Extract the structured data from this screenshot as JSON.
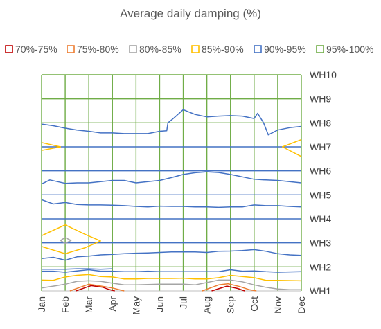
{
  "chart_data": {
    "type": "line",
    "title": "Average daily damping (%)",
    "xlabel": "",
    "ylabel": "",
    "x_labels": [
      "Jan",
      "Feb",
      "Mar",
      "Apr",
      "May",
      "Jun",
      "Jul",
      "Aug",
      "Sep",
      "Oct",
      "Nov",
      "Dec"
    ],
    "y_labels": [
      "WH1",
      "WH2",
      "WH3",
      "WH4",
      "WH5",
      "WH6",
      "WH7",
      "WH8",
      "WH9",
      "WH10"
    ],
    "xlim": [
      1,
      12
    ],
    "ylim": [
      1,
      10
    ],
    "grid": true,
    "legend_position": "top",
    "series": [
      {
        "name": "70%-75%",
        "color": "#c00000",
        "lines": [
          [
            [
              2.45,
              1
            ],
            [
              3.1,
              1.22
            ],
            [
              3.6,
              1.15
            ],
            [
              3.85,
              1.06
            ],
            [
              4.1,
              1
            ]
          ],
          [
            [
              8.2,
              1
            ],
            [
              8.85,
              1.2
            ],
            [
              9.3,
              1.1
            ],
            [
              9.6,
              1
            ]
          ]
        ]
      },
      {
        "name": "75%-80%",
        "color": "#ed7d31",
        "lines": [
          [
            [
              2.2,
              1
            ],
            [
              3,
              1.28
            ],
            [
              3.4,
              1.22
            ],
            [
              4,
              1.12
            ],
            [
              4.5,
              1
            ]
          ],
          [
            [
              7.8,
              1
            ],
            [
              8.5,
              1.25
            ],
            [
              8.9,
              1.3
            ],
            [
              9.4,
              1.18
            ],
            [
              9.8,
              1.05
            ],
            [
              10.1,
              1
            ]
          ]
        ]
      },
      {
        "name": "80%-85%",
        "color": "#a5a5a5",
        "lines": [
          [
            [
              1,
              1.12
            ],
            [
              1.5,
              1.2
            ],
            [
              2,
              1.28
            ],
            [
              2.5,
              1.4
            ],
            [
              3,
              1.42
            ],
            [
              3.5,
              1.4
            ],
            [
              4,
              1.32
            ],
            [
              4.5,
              1.25
            ],
            [
              5,
              1.25
            ],
            [
              6,
              1.28
            ],
            [
              7,
              1.28
            ],
            [
              7.5,
              1.25
            ],
            [
              8,
              1.35
            ],
            [
              8.5,
              1.45
            ],
            [
              9,
              1.45
            ],
            [
              9.5,
              1.38
            ],
            [
              10,
              1.25
            ],
            [
              10.5,
              1.15
            ],
            [
              11,
              1.08
            ],
            [
              11.5,
              1.05
            ],
            [
              12,
              1.05
            ]
          ],
          [
            [
              1.8,
              3.1
            ],
            [
              2,
              3.22
            ],
            [
              2.25,
              3.1
            ],
            [
              2,
              2.98
            ],
            [
              1.8,
              3.1
            ]
          ]
        ]
      },
      {
        "name": "85%-90%",
        "color": "#ffc000",
        "lines": [
          [
            [
              1,
              1.45
            ],
            [
              1.5,
              1.44
            ],
            [
              2,
              1.58
            ],
            [
              2.5,
              1.65
            ],
            [
              3,
              1.68
            ],
            [
              3.5,
              1.6
            ],
            [
              4,
              1.58
            ],
            [
              4.5,
              1.5
            ],
            [
              5,
              1.5
            ],
            [
              5.5,
              1.52
            ],
            [
              6,
              1.52
            ],
            [
              6.5,
              1.52
            ],
            [
              7,
              1.53
            ],
            [
              7.5,
              1.5
            ],
            [
              8,
              1.5
            ],
            [
              8.5,
              1.55
            ],
            [
              9,
              1.65
            ],
            [
              9.5,
              1.6
            ],
            [
              10,
              1.55
            ],
            [
              10.5,
              1.44
            ],
            [
              11,
              1.44
            ],
            [
              12,
              1.42
            ]
          ],
          [
            [
              1,
              3.3
            ],
            [
              2,
              3.75
            ],
            [
              2.85,
              3.35
            ],
            [
              3.5,
              3.08
            ],
            [
              2.85,
              2.8
            ],
            [
              2,
              2.55
            ],
            [
              1,
              2.85
            ]
          ],
          [
            [
              1,
              7.18
            ],
            [
              1.8,
              7.0
            ],
            [
              1,
              6.85
            ]
          ],
          [
            [
              12,
              7.3
            ],
            [
              11.2,
              7.0
            ],
            [
              12,
              6.6
            ]
          ]
        ]
      },
      {
        "name": "90%-95%",
        "color": "#4472c4",
        "lines": [
          [
            [
              1,
              1.82
            ],
            [
              1.5,
              1.82
            ],
            [
              2,
              1.78
            ],
            [
              2.5,
              1.83
            ],
            [
              3,
              1.88
            ],
            [
              3.5,
              1.82
            ],
            [
              4,
              1.82
            ],
            [
              4.5,
              1.8
            ],
            [
              5,
              1.8
            ],
            [
              5.5,
              1.82
            ],
            [
              6,
              1.8
            ],
            [
              6.5,
              1.8
            ],
            [
              7,
              1.8
            ],
            [
              7.5,
              1.8
            ],
            [
              8,
              1.8
            ],
            [
              8.5,
              1.8
            ],
            [
              9,
              1.88
            ],
            [
              9.5,
              1.82
            ],
            [
              10,
              1.83
            ],
            [
              10.5,
              1.8
            ],
            [
              11,
              1.78
            ],
            [
              12,
              1.8
            ]
          ],
          [
            [
              1,
              1.9
            ],
            [
              2,
              1.9
            ],
            [
              2.5,
              1.92
            ],
            [
              3,
              1.92
            ],
            [
              3.5,
              1.9
            ],
            [
              4,
              1.92
            ]
          ],
          [
            [
              1,
              2.35
            ],
            [
              1.5,
              2.4
            ],
            [
              2,
              2.28
            ],
            [
              2.5,
              2.42
            ],
            [
              3,
              2.45
            ],
            [
              3.5,
              2.5
            ],
            [
              4,
              2.52
            ],
            [
              4.5,
              2.55
            ],
            [
              5,
              2.57
            ],
            [
              5.5,
              2.58
            ],
            [
              6,
              2.6
            ],
            [
              6.5,
              2.62
            ],
            [
              7,
              2.62
            ],
            [
              7.5,
              2.62
            ],
            [
              8,
              2.6
            ],
            [
              8.5,
              2.65
            ],
            [
              9,
              2.66
            ],
            [
              9.5,
              2.68
            ],
            [
              10,
              2.72
            ],
            [
              10.5,
              2.65
            ],
            [
              11,
              2.55
            ],
            [
              11.5,
              2.5
            ],
            [
              12,
              2.48
            ]
          ],
          [
            [
              1,
              4.8
            ],
            [
              1.5,
              4.62
            ],
            [
              2,
              4.68
            ],
            [
              2.5,
              4.6
            ],
            [
              3,
              4.58
            ],
            [
              3.5,
              4.58
            ],
            [
              4,
              4.57
            ],
            [
              4.5,
              4.55
            ],
            [
              5,
              4.52
            ],
            [
              5.5,
              4.5
            ],
            [
              6,
              4.53
            ],
            [
              6.5,
              4.52
            ],
            [
              7,
              4.52
            ],
            [
              7.5,
              4.5
            ],
            [
              8,
              4.5
            ],
            [
              8.5,
              4.48
            ],
            [
              9,
              4.5
            ],
            [
              9.5,
              4.5
            ],
            [
              10,
              4.58
            ],
            [
              10.5,
              4.55
            ],
            [
              11,
              4.55
            ],
            [
              11.5,
              4.52
            ],
            [
              12,
              4.5
            ]
          ],
          [
            [
              1,
              5.45
            ],
            [
              1.35,
              5.62
            ],
            [
              2,
              5.48
            ],
            [
              2.5,
              5.5
            ],
            [
              3,
              5.5
            ],
            [
              3.5,
              5.55
            ],
            [
              4,
              5.6
            ],
            [
              4.5,
              5.6
            ],
            [
              5,
              5.5
            ],
            [
              5.5,
              5.55
            ],
            [
              6,
              5.6
            ],
            [
              6.5,
              5.72
            ],
            [
              7,
              5.85
            ],
            [
              7.5,
              5.92
            ],
            [
              8,
              5.96
            ],
            [
              8.5,
              5.93
            ],
            [
              9,
              5.85
            ],
            [
              9.5,
              5.75
            ],
            [
              10,
              5.65
            ],
            [
              10.5,
              5.62
            ],
            [
              11,
              5.6
            ],
            [
              11.5,
              5.55
            ],
            [
              12,
              5.5
            ]
          ],
          [
            [
              1,
              7.95
            ],
            [
              1.5,
              7.88
            ],
            [
              2,
              7.78
            ],
            [
              2.5,
              7.7
            ],
            [
              3,
              7.65
            ],
            [
              3.5,
              7.58
            ],
            [
              4,
              7.58
            ],
            [
              4.5,
              7.55
            ],
            [
              5,
              7.55
            ],
            [
              5.5,
              7.55
            ],
            [
              6,
              7.65
            ],
            [
              6.3,
              7.67
            ],
            [
              6.35,
              8.0
            ],
            [
              6.6,
              8.2
            ],
            [
              7,
              8.55
            ],
            [
              7.5,
              8.35
            ],
            [
              8,
              8.25
            ],
            [
              8.5,
              8.28
            ],
            [
              9,
              8.3
            ],
            [
              9.5,
              8.28
            ],
            [
              10,
              8.18
            ],
            [
              10.15,
              8.4
            ],
            [
              10.4,
              8.0
            ],
            [
              10.6,
              7.5
            ],
            [
              11,
              7.7
            ],
            [
              11.5,
              7.8
            ],
            [
              12,
              7.85
            ]
          ]
        ]
      },
      {
        "name": "95%-100%",
        "color": "#70ad47",
        "lines": []
      }
    ]
  }
}
